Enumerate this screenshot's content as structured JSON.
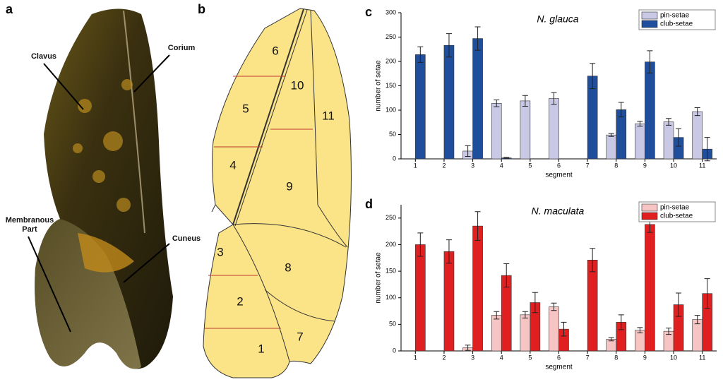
{
  "photo": {
    "panel": "a",
    "labels": [
      "Clavus",
      "Corium",
      "Membranous Part",
      "Cuneus"
    ]
  },
  "diagram": {
    "panel": "b",
    "segments": [
      "1",
      "2",
      "3",
      "4",
      "5",
      "6",
      "7",
      "8",
      "9",
      "10",
      "11"
    ]
  },
  "chart_data": [
    {
      "type": "bar",
      "panel": "c",
      "title": "N. glauca",
      "x_label": "segment",
      "y_label": "number of setae",
      "categories": [
        "1",
        "2",
        "3",
        "4",
        "5",
        "6",
        "7",
        "8",
        "9",
        "10",
        "11"
      ],
      "series": [
        {
          "name": "pin-setae",
          "color": "#c9c9e6",
          "values": [
            0,
            0,
            16,
            114,
            119,
            124,
            0,
            49,
            72,
            76,
            97
          ],
          "errors": [
            null,
            null,
            11,
            7,
            11,
            12,
            null,
            3,
            5,
            7,
            8
          ]
        },
        {
          "name": "club-setae",
          "color": "#1f4e9c",
          "values": [
            214,
            233,
            247,
            2,
            0,
            0,
            170,
            101,
            199,
            44,
            20
          ],
          "errors": [
            16,
            24,
            24,
            1,
            null,
            null,
            26,
            15,
            23,
            18,
            24
          ]
        }
      ],
      "ylim": [
        0,
        300
      ],
      "yticks": [
        0,
        50,
        100,
        150,
        200,
        250,
        300
      ],
      "legend": "upper right"
    },
    {
      "type": "bar",
      "panel": "d",
      "title": "N. maculata",
      "x_label": "segment",
      "y_label": "number of setae",
      "categories": [
        "1",
        "2",
        "3",
        "4",
        "5",
        "6",
        "7",
        "8",
        "9",
        "10",
        "11"
      ],
      "series": [
        {
          "name": "pin-setae",
          "color": "#f7c4c4",
          "values": [
            0,
            0,
            6,
            67,
            68,
            83,
            0,
            22,
            39,
            37,
            59
          ],
          "errors": [
            null,
            null,
            5,
            7,
            6,
            7,
            null,
            3,
            5,
            6,
            8
          ]
        },
        {
          "name": "club-setae",
          "color": "#e02020",
          "values": [
            200,
            187,
            235,
            142,
            91,
            41,
            171,
            54,
            238,
            87,
            108
          ],
          "errors": [
            22,
            22,
            27,
            22,
            19,
            13,
            22,
            14,
            15,
            22,
            28
          ]
        }
      ],
      "ylim": [
        0,
        275
      ],
      "yticks": [
        0,
        50,
        100,
        150,
        200,
        250
      ],
      "legend": "upper right"
    }
  ]
}
